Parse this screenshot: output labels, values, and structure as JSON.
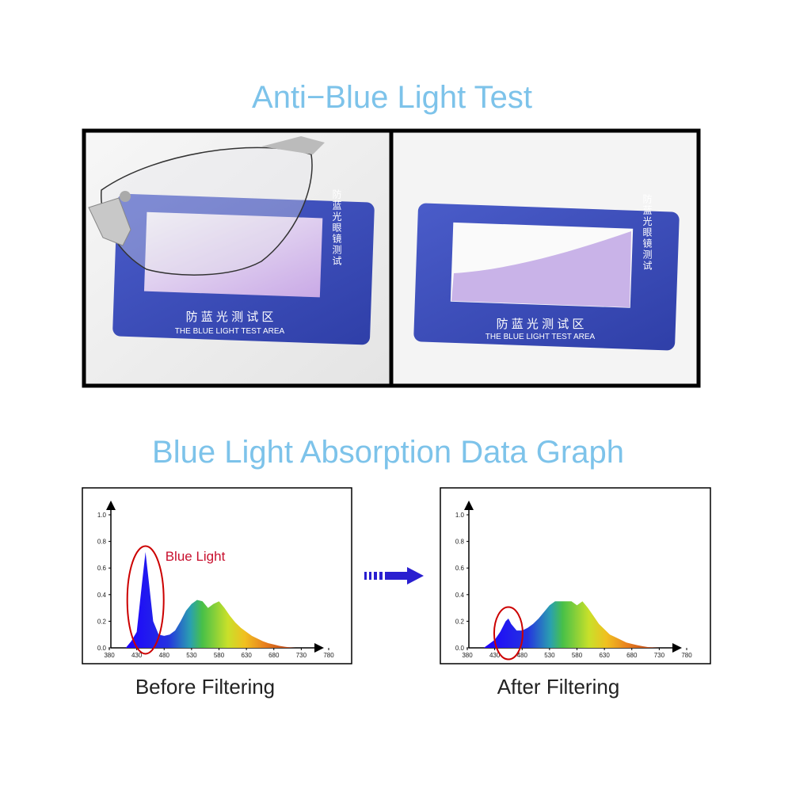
{
  "header": {
    "title": "Anti−Blue Light Test"
  },
  "test_card": {
    "vertical_text": "防蓝光眼镜测试",
    "zone_text": "防 蓝 光 测 试 区",
    "english_text": "THE BLUE LIGHT TEST AREA"
  },
  "graph_title": "Blue Light Absorption Data Graph",
  "chart_data": [
    {
      "type": "area",
      "caption": "Before Filtering",
      "annotation": "Blue Light",
      "x": [
        410,
        420,
        430,
        440,
        446,
        452,
        460,
        470,
        480,
        490,
        500,
        510,
        520,
        530,
        540,
        550,
        560,
        570,
        580,
        590,
        600,
        610,
        620,
        630,
        640,
        650,
        660,
        670,
        680,
        690,
        700,
        710,
        720
      ],
      "values": [
        0,
        0.05,
        0.12,
        0.5,
        0.72,
        0.5,
        0.2,
        0.1,
        0.09,
        0.1,
        0.13,
        0.2,
        0.28,
        0.33,
        0.36,
        0.35,
        0.3,
        0.33,
        0.35,
        0.3,
        0.24,
        0.19,
        0.15,
        0.12,
        0.09,
        0.07,
        0.05,
        0.035,
        0.025,
        0.015,
        0.008,
        0.003,
        0
      ],
      "xlim": [
        380,
        780
      ],
      "ylim": [
        0,
        1
      ],
      "xticks": [
        380,
        430,
        480,
        530,
        580,
        630,
        680,
        730,
        780
      ],
      "yticks": [
        {
          "value": 0,
          "label": "0.0"
        },
        0.2,
        0.4,
        0.6,
        0.8,
        {
          "value": 1,
          "label": "1.0"
        }
      ]
    },
    {
      "type": "area",
      "caption": "After Filtering",
      "x": [
        410,
        420,
        430,
        440,
        450,
        455,
        460,
        470,
        480,
        490,
        500,
        510,
        520,
        530,
        540,
        550,
        560,
        570,
        580,
        590,
        600,
        610,
        620,
        630,
        640,
        650,
        660,
        670,
        680,
        690,
        700,
        710,
        720,
        730
      ],
      "values": [
        0,
        0.03,
        0.06,
        0.12,
        0.2,
        0.22,
        0.18,
        0.13,
        0.13,
        0.15,
        0.18,
        0.22,
        0.27,
        0.32,
        0.35,
        0.35,
        0.35,
        0.35,
        0.32,
        0.35,
        0.3,
        0.24,
        0.18,
        0.14,
        0.1,
        0.08,
        0.06,
        0.04,
        0.03,
        0.02,
        0.012,
        0.005,
        0.002,
        0
      ],
      "xlim": [
        380,
        780
      ],
      "ylim": [
        0,
        1
      ],
      "xticks": [
        380,
        430,
        480,
        530,
        580,
        630,
        680,
        730,
        780
      ],
      "yticks": [
        {
          "value": 0,
          "label": "0.0"
        },
        0.2,
        0.4,
        0.6,
        0.8,
        {
          "value": 1,
          "label": "1.0"
        }
      ]
    }
  ]
}
